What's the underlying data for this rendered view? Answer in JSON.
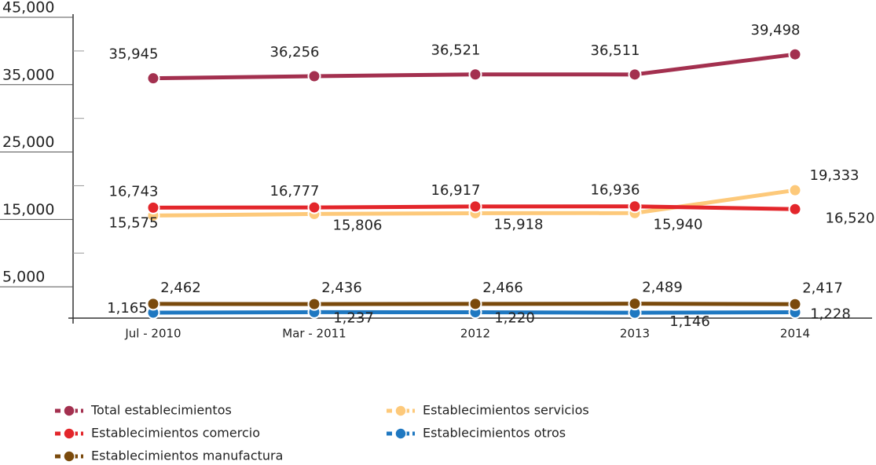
{
  "chart_data": {
    "type": "line",
    "categories": [
      "Jul - 2010",
      "Mar - 2011",
      "2012",
      "2013",
      "2014"
    ],
    "ylim": [
      0,
      45000
    ],
    "yticks": [
      {
        "value": 5000,
        "label": "5,000"
      },
      {
        "value": 15000,
        "label": "15,000"
      },
      {
        "value": 25000,
        "label": "25,000"
      },
      {
        "value": 35000,
        "label": "35,000"
      },
      {
        "value": 45000,
        "label": "45,000"
      }
    ],
    "yminor": [
      10000,
      20000,
      30000,
      40000
    ],
    "series": [
      {
        "name": "Total establecimientos",
        "color": "#a3304f",
        "values": [
          35945,
          36256,
          36521,
          36511,
          39498
        ],
        "value_labels": [
          "35,945",
          "36,256",
          "36,521",
          "36,511",
          "39,498"
        ]
      },
      {
        "name": "Establecimientos comercio",
        "color": "#e3262b",
        "values": [
          16743,
          16777,
          16917,
          16936,
          16520
        ],
        "value_labels": [
          "16,743",
          "16,777",
          "16,917",
          "16,936",
          "16,520"
        ]
      },
      {
        "name": "Establecimientos manufactura",
        "color": "#7a4a0c",
        "values": [
          2462,
          2436,
          2466,
          2489,
          2417
        ],
        "value_labels": [
          "2,462",
          "2,436",
          "2,466",
          "2,489",
          "2,417"
        ]
      },
      {
        "name": "Establecimientos servicios",
        "color": "#fdc97a",
        "values": [
          15575,
          15806,
          15918,
          15940,
          19333
        ],
        "value_labels": [
          "15,575",
          "15,806",
          "15,918",
          "15,940",
          "19,333"
        ]
      },
      {
        "name": "Establecimientos otros",
        "color": "#1f78c1",
        "values": [
          1165,
          1237,
          1220,
          1146,
          1228
        ],
        "value_labels": [
          "1,165",
          "1,237",
          "1,220",
          "1,146",
          "1,228"
        ]
      }
    ]
  }
}
